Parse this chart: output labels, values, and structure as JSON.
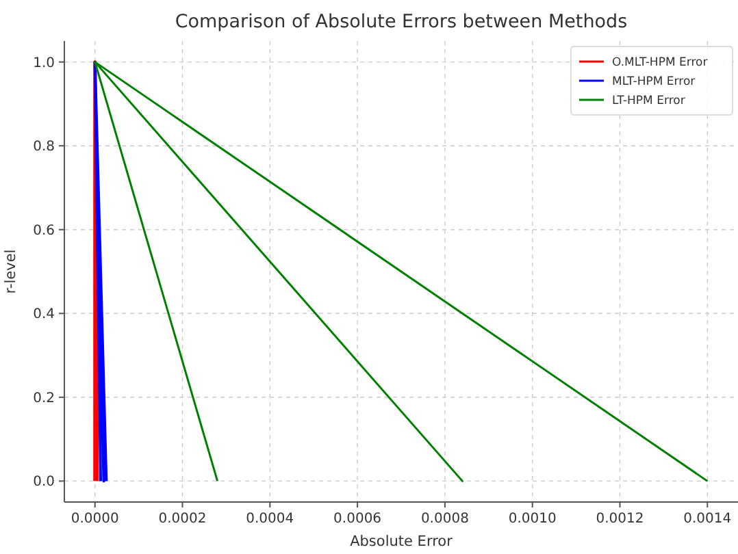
{
  "chart_data": {
    "type": "line",
    "title": "Comparison of Absolute Errors between Methods",
    "xlabel": "Absolute Error",
    "ylabel": "r-level",
    "series": [
      {
        "name": "O.MLT-HPM Error",
        "color": "#ff0000",
        "x": [
          0,
          0,
          5e-06
        ],
        "values": [
          0,
          1,
          0
        ]
      },
      {
        "name": "MLT-HPM Error",
        "color": "#0000ff",
        "x": [
          1.3e-05,
          0,
          2e-05,
          0,
          2.6e-05
        ],
        "values": [
          0,
          1,
          0,
          1,
          0
        ]
      },
      {
        "name": "LT-HPM Error",
        "color": "#008000",
        "x": [
          0.00028,
          0,
          0.00084,
          0,
          0.0014
        ],
        "values": [
          0,
          1,
          0,
          1,
          0
        ]
      }
    ],
    "xlim": [
      -7e-05,
      0.00147
    ],
    "xticks": [
      {
        "value": 0,
        "label": "0.0000"
      },
      {
        "value": 0.0002,
        "label": "0.0002"
      },
      {
        "value": 0.0004,
        "label": "0.0004"
      },
      {
        "value": 0.0006,
        "label": "0.0006"
      },
      {
        "value": 0.0008,
        "label": "0.0008"
      },
      {
        "value": 0.001,
        "label": "0.0010"
      },
      {
        "value": 0.0012,
        "label": "0.0012"
      },
      {
        "value": 0.0014,
        "label": "0.0014"
      }
    ],
    "ylim": [
      -0.05,
      1.05
    ],
    "yticks": [
      {
        "value": 0,
        "label": "0.0"
      },
      {
        "value": 0.2,
        "label": "0.2"
      },
      {
        "value": 0.4,
        "label": "0.4"
      },
      {
        "value": 0.6,
        "label": "0.6"
      },
      {
        "value": 0.8,
        "label": "0.8"
      },
      {
        "value": 1,
        "label": "1.0"
      }
    ],
    "grid": true,
    "legend": "top right",
    "line_style": "solid"
  }
}
